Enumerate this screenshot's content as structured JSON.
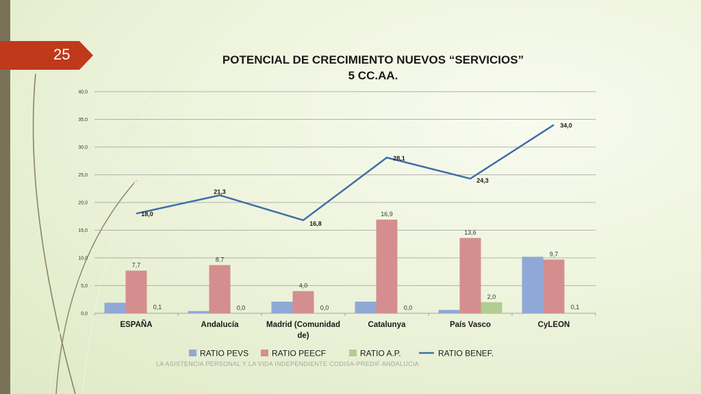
{
  "slide": {
    "page_number": "25",
    "footer": "LA ASISTENCIA PERSONAL Y LA VIDA INDEPENDIENTE CODISA-PREDIF ANDALUCIA"
  },
  "chart_data": {
    "type": "bar",
    "title": "POTENCIAL DE CRECIMIENTO NUEVOS “SERVICIOS”",
    "subtitle": "5 CC.AA.",
    "categories": [
      "ESPAÑA",
      "Andalucía",
      "Madrid (Comunidad de)",
      "Catalunya",
      "País Vasco",
      "CyLEON"
    ],
    "category_lines": [
      [
        "ESPAÑA"
      ],
      [
        "Andalucía"
      ],
      [
        "Madrid (Comunidad",
        "de)"
      ],
      [
        "Catalunya"
      ],
      [
        "País Vasco"
      ],
      [
        "CyLEON"
      ]
    ],
    "ylim": [
      0,
      40
    ],
    "yticks": [
      "0,0",
      "5,0",
      "10,0",
      "15,0",
      "20,0",
      "25,0",
      "30,0",
      "35,0",
      "40,0"
    ],
    "grid": true,
    "legend_position": "bottom",
    "series": [
      {
        "name": "RATIO PEVS",
        "type": "bar",
        "color": "#8fa9d6",
        "values": [
          1.9,
          0.4,
          2.1,
          2.1,
          0.6,
          10.2
        ],
        "labels": [
          "",
          "",
          "",
          "",
          "",
          ""
        ]
      },
      {
        "name": "RATIO PEECF",
        "type": "bar",
        "color": "#d48e8e",
        "values": [
          7.7,
          8.7,
          4.0,
          16.9,
          13.6,
          9.7
        ],
        "labels": [
          "7,7",
          "8,7",
          "4,0",
          "16,9",
          "13,6",
          "9,7"
        ]
      },
      {
        "name": "RATIO A.P.",
        "type": "bar",
        "color": "#b2cc92",
        "values": [
          0.1,
          0.0,
          0.0,
          0.0,
          2.0,
          0.1
        ],
        "labels": [
          "0,1",
          "0,0",
          "0,0",
          "0,0",
          "2,0",
          "0,1"
        ]
      },
      {
        "name": "RATIO BENEF.",
        "type": "line",
        "color": "#3f6ea6",
        "values": [
          18.0,
          21.3,
          16.8,
          28.1,
          24.3,
          34.0
        ],
        "labels": [
          "18,0",
          "21,3",
          "16,8",
          "28,1",
          "24,3",
          "34,0"
        ]
      }
    ]
  }
}
